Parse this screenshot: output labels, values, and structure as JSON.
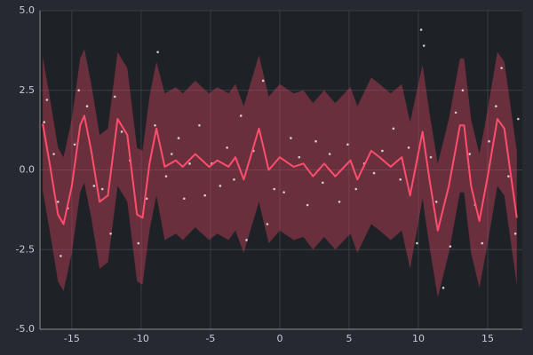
{
  "chart_data": {
    "type": "line",
    "x": [
      -17.1,
      -16.6,
      -16.0,
      -15.6,
      -15.0,
      -14.4,
      -14.1,
      -13.6,
      -13.0,
      -12.4,
      -11.7,
      -11.0,
      -10.3,
      -9.9,
      -9.4,
      -8.9,
      -8.3,
      -7.5,
      -7.0,
      -6.1,
      -5.1,
      -4.5,
      -3.7,
      -3.2,
      -2.6,
      -1.5,
      -0.8,
      0,
      1.0,
      1.7,
      2.4,
      3.2,
      4.0,
      5.1,
      5.6,
      6.6,
      7.2,
      8.0,
      8.8,
      9.4,
      10.3,
      10.8,
      11.4,
      12.2,
      13.0,
      13.3,
      13.8,
      14.4,
      15.0,
      15.7,
      16.2,
      17.1
    ],
    "values": [
      1.45,
      0.2,
      -1.4,
      -1.7,
      -0.5,
      1.4,
      1.7,
      0.6,
      -1.0,
      -0.8,
      1.6,
      1.1,
      -1.4,
      -1.5,
      0.2,
      1.3,
      0.1,
      0.3,
      0.1,
      0.5,
      0.1,
      0.3,
      0.1,
      0.4,
      -0.3,
      1.3,
      0.0,
      0.4,
      0.1,
      0.2,
      -0.2,
      0.2,
      -0.2,
      0.3,
      -0.3,
      0.6,
      0.4,
      0.1,
      0.4,
      -0.8,
      1.2,
      -0.3,
      -1.9,
      -0.5,
      1.4,
      1.4,
      -0.5,
      -1.6,
      -0.2,
      1.6,
      1.3,
      -1.5
    ],
    "band_upper": [
      3.55,
      2.3,
      0.7,
      0.4,
      1.6,
      3.5,
      3.8,
      2.7,
      1.1,
      1.3,
      3.7,
      3.2,
      0.7,
      0.6,
      2.3,
      3.4,
      2.4,
      2.6,
      2.4,
      2.8,
      2.4,
      2.6,
      2.4,
      2.7,
      2.0,
      3.6,
      2.3,
      2.7,
      2.4,
      2.5,
      2.1,
      2.5,
      2.1,
      2.6,
      2.0,
      2.9,
      2.7,
      2.4,
      2.7,
      1.5,
      3.3,
      1.8,
      0.2,
      1.6,
      3.5,
      3.5,
      1.6,
      0.5,
      1.9,
      3.7,
      3.4,
      0.6
    ],
    "band_lower": [
      -0.65,
      -1.9,
      -3.5,
      -3.8,
      -2.6,
      -0.7,
      -0.4,
      -1.5,
      -3.1,
      -2.9,
      -0.5,
      -1.0,
      -3.5,
      -3.6,
      -1.9,
      -0.8,
      -2.2,
      -2.0,
      -2.2,
      -1.8,
      -2.2,
      -2.0,
      -2.2,
      -1.9,
      -2.6,
      -1.0,
      -2.3,
      -1.9,
      -2.2,
      -2.1,
      -2.5,
      -2.1,
      -2.5,
      -2.0,
      -2.6,
      -1.7,
      -1.9,
      -2.2,
      -1.9,
      -3.1,
      -0.9,
      -2.4,
      -4.0,
      -2.6,
      -0.7,
      -0.7,
      -2.6,
      -3.7,
      -2.3,
      -0.5,
      -0.8,
      -3.6
    ],
    "scatter_x": [
      -17,
      -16.8,
      -16.3,
      -16,
      -15.8,
      -15.3,
      -14.8,
      -14.5,
      -13.9,
      -13.4,
      -12.8,
      -12.2,
      -11.9,
      -11.4,
      -10.8,
      -10.2,
      -9.6,
      -9.0,
      -8.8,
      -8.2,
      -7.8,
      -7.3,
      -6.9,
      -6.5,
      -5.8,
      -5.4,
      -4.9,
      -4.3,
      -3.8,
      -3.3,
      -2.8,
      -2.4,
      -1.9,
      -1.2,
      -0.9,
      -0.4,
      0.3,
      0.8,
      1.4,
      2.0,
      2.6,
      3.1,
      3.6,
      4.3,
      4.9,
      5.5,
      6.1,
      6.8,
      7.4,
      8.2,
      8.7,
      9.3,
      9.9,
      10.2,
      10.4,
      10.9,
      11.3,
      11.8,
      12.3,
      12.7,
      13.2,
      13.7,
      14.1,
      14.6,
      15.1,
      15.6,
      16.0,
      16.5,
      17.0,
      17.2
    ],
    "scatter_y": [
      1.5,
      2.2,
      0.5,
      -1.0,
      -2.7,
      -1.2,
      0.8,
      2.5,
      2.0,
      -0.5,
      -0.6,
      -2.0,
      2.3,
      1.2,
      0.3,
      -2.3,
      -0.9,
      1.4,
      3.7,
      -0.2,
      0.5,
      1.0,
      -0.9,
      0.2,
      1.4,
      -0.8,
      0.2,
      -0.5,
      0.7,
      -0.3,
      1.7,
      -2.2,
      0.6,
      2.8,
      -1.7,
      -0.6,
      -0.7,
      1.0,
      0.4,
      -1.1,
      0.9,
      -0.4,
      0.5,
      -1.0,
      0.8,
      -0.6,
      0.2,
      -0.1,
      0.6,
      1.3,
      -0.3,
      0.7,
      -2.3,
      4.4,
      3.9,
      0.4,
      -1.0,
      -3.7,
      -2.4,
      1.8,
      2.5,
      0.5,
      -1.1,
      -2.3,
      0.9,
      2.0,
      3.2,
      -0.2,
      -2.0,
      1.6
    ],
    "color": "#ff4d6d",
    "band_color": "#c8405a",
    "point_color": "#e8e8e8",
    "xlim": [
      -17.3,
      17.5
    ],
    "ylim": [
      -5,
      5
    ],
    "xticks": [
      -15,
      -10,
      -5,
      0,
      5,
      10,
      15
    ],
    "yticks": [
      {
        "value": -5,
        "label": "-5.0"
      },
      {
        "value": -2.5,
        "label": "-2.5"
      },
      {
        "value": 0,
        "label": "0.0"
      },
      {
        "value": 2.5,
        "label": "2.5"
      },
      {
        "value": 5,
        "label": "5.0"
      }
    ],
    "grid": true
  }
}
